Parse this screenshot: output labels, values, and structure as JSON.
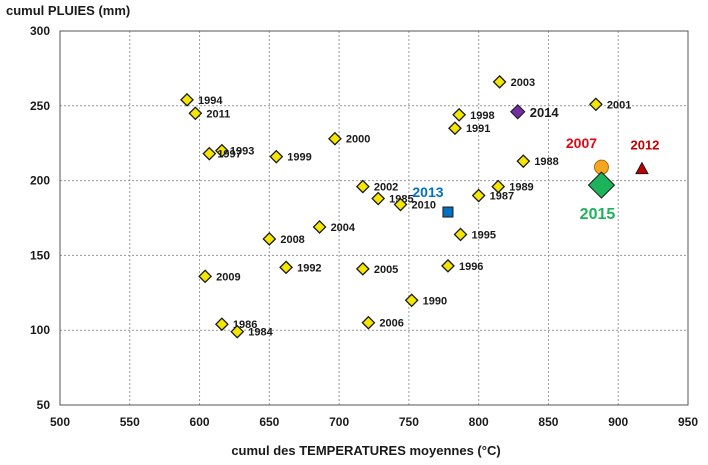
{
  "chart_data": {
    "type": "scatter",
    "ylabel": "cumul PLUIES (mm)",
    "xlabel": "cumul des TEMPERATURES moyennes (°C)",
    "xlim": [
      500,
      950
    ],
    "ylim": [
      50,
      300
    ],
    "xticks": [
      "500",
      "550",
      "600",
      "650",
      "700",
      "750",
      "800",
      "850",
      "900",
      "950"
    ],
    "yticks": [
      "50",
      "100",
      "150",
      "200",
      "250",
      "300"
    ],
    "grid": true,
    "points": [
      {
        "label": "1994",
        "x": 591,
        "y": 254
      },
      {
        "label": "2011",
        "x": 597,
        "y": 245
      },
      {
        "label": "1993",
        "x": 616,
        "y": 220
      },
      {
        "label": "1997",
        "x": 607,
        "y": 218
      },
      {
        "label": "1999",
        "x": 655,
        "y": 216
      },
      {
        "label": "2000",
        "x": 697,
        "y": 228
      },
      {
        "label": "2003",
        "x": 815,
        "y": 266
      },
      {
        "label": "1998",
        "x": 786,
        "y": 244
      },
      {
        "label": "1991",
        "x": 783,
        "y": 235
      },
      {
        "label": "2001",
        "x": 884,
        "y": 251
      },
      {
        "label": "1988",
        "x": 832,
        "y": 213
      },
      {
        "label": "1989",
        "x": 814,
        "y": 196
      },
      {
        "label": "1987",
        "x": 800,
        "y": 190
      },
      {
        "label": "2002",
        "x": 717,
        "y": 196
      },
      {
        "label": "1985",
        "x": 728,
        "y": 188
      },
      {
        "label": "2010",
        "x": 744,
        "y": 184
      },
      {
        "label": "2004",
        "x": 686,
        "y": 169
      },
      {
        "label": "2008",
        "x": 650,
        "y": 161
      },
      {
        "label": "1995",
        "x": 787,
        "y": 164
      },
      {
        "label": "1996",
        "x": 778,
        "y": 143
      },
      {
        "label": "1992",
        "x": 662,
        "y": 142
      },
      {
        "label": "2005",
        "x": 717,
        "y": 141
      },
      {
        "label": "2009",
        "x": 604,
        "y": 136
      },
      {
        "label": "1990",
        "x": 752,
        "y": 120
      },
      {
        "label": "1986",
        "x": 616,
        "y": 104
      },
      {
        "label": "2006",
        "x": 721,
        "y": 105
      },
      {
        "label": "1984",
        "x": 627,
        "y": 99
      }
    ],
    "highlights": [
      {
        "label": "2014",
        "x": 828,
        "y": 246,
        "marker": "diamond",
        "color": "#7030a0",
        "label_color": "#1a1a1a"
      },
      {
        "label": "2013",
        "x": 778,
        "y": 179,
        "marker": "square",
        "color": "#0070c0",
        "label_color": "#0070c0"
      },
      {
        "label": "2007",
        "x": 888,
        "y": 209,
        "marker": "circle",
        "color": "#f5a623",
        "label_color": "#e30613"
      },
      {
        "label": "2012",
        "x": 917,
        "y": 208,
        "marker": "triangle",
        "color": "#c00000",
        "label_color": "#c00000"
      },
      {
        "label": "2015",
        "x": 888,
        "y": 197,
        "marker": "diamond",
        "color": "#1db35a",
        "label_color": "#1db35a"
      }
    ],
    "colors": {
      "default_marker": "#f5e600",
      "marker_stroke": "#1a1a1a",
      "grid": "#999999"
    }
  }
}
